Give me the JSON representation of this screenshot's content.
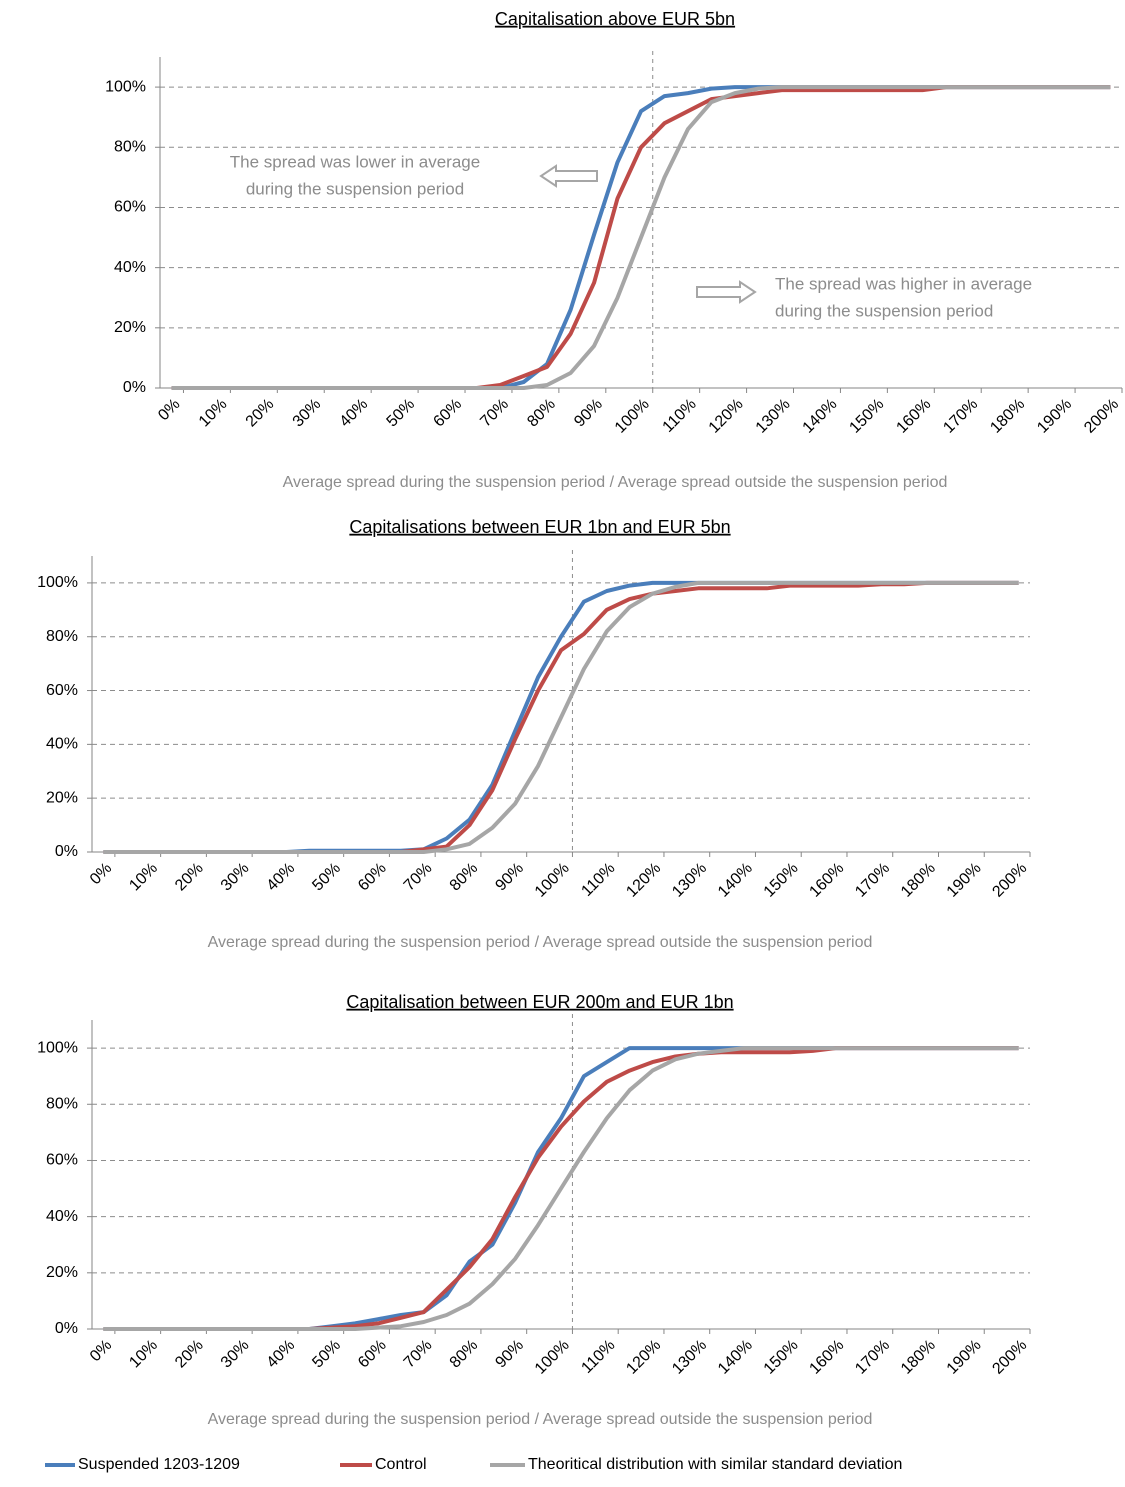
{
  "chart_data": [
    {
      "type": "line",
      "title": "Capitalisation above EUR 5bn",
      "x_label": "Average spread during the suspension period / Average  spread outside the suspension period",
      "categories": [
        "0%",
        null,
        "10%",
        null,
        "20%",
        null,
        "30%",
        null,
        "40%",
        null,
        "50%",
        null,
        "60%",
        null,
        "70%",
        null,
        "80%",
        null,
        "90%",
        null,
        "100%",
        null,
        "110%",
        null,
        "120%",
        null,
        "130%",
        null,
        "140%",
        null,
        "150%",
        null,
        "160%",
        null,
        "170%",
        null,
        "180%",
        null,
        "190%",
        null,
        "200%"
      ],
      "ylim": [
        0,
        110
      ],
      "yticks": [
        {
          "value": 0,
          "label": "0%"
        },
        {
          "value": 20,
          "label": "20%"
        },
        {
          "value": 40,
          "label": "40%"
        },
        {
          "value": 60,
          "label": "60%"
        },
        {
          "value": 80,
          "label": "80%"
        },
        {
          "value": 100,
          "label": "100%"
        }
      ],
      "grid": true,
      "annotations": [
        {
          "lines": [
            "The spread was lower in average",
            "during the suspension period"
          ]
        },
        {
          "lines": [
            "The spread was higher in average",
            "during the suspension period"
          ]
        }
      ],
      "series": [
        {
          "name": "Suspended 1203-1209",
          "color": "#4a7ebb",
          "values": [
            0,
            0,
            0,
            0,
            0,
            0,
            0,
            0,
            0,
            0,
            0,
            0,
            0,
            0,
            0,
            2,
            8,
            26,
            51,
            75,
            92,
            97,
            98,
            99.5,
            100,
            100,
            100,
            100,
            100,
            100,
            100,
            100,
            100,
            100,
            100,
            100,
            100,
            100,
            100,
            100,
            100
          ]
        },
        {
          "name": "Control",
          "color": "#be4b48",
          "values": [
            0,
            0,
            0,
            0,
            0,
            0,
            0,
            0,
            0,
            0,
            0,
            0,
            0,
            0,
            1,
            4,
            7,
            18,
            35,
            63,
            80,
            88,
            92,
            96,
            97,
            98,
            99,
            99,
            99,
            99,
            99,
            99,
            99,
            100,
            100,
            100,
            100,
            100,
            100,
            100,
            100
          ]
        },
        {
          "name": "Theoritical distribution with similar standard deviation",
          "color": "#a6a6a6",
          "values": [
            0,
            0,
            0,
            0,
            0,
            0,
            0,
            0,
            0,
            0,
            0,
            0,
            0,
            0,
            0,
            0,
            1,
            5,
            14,
            30,
            50,
            70,
            86,
            95,
            98,
            99.5,
            100,
            100,
            100,
            100,
            100,
            100,
            100,
            100,
            100,
            100,
            100,
            100,
            100,
            100,
            100
          ]
        }
      ]
    },
    {
      "type": "line",
      "title": "Capitalisations between EUR 1bn and EUR 5bn",
      "x_label": "Average spread during the suspension period / Average  spread outside the suspension period",
      "categories": [
        "0%",
        null,
        "10%",
        null,
        "20%",
        null,
        "30%",
        null,
        "40%",
        null,
        "50%",
        null,
        "60%",
        null,
        "70%",
        null,
        "80%",
        null,
        "90%",
        null,
        "100%",
        null,
        "110%",
        null,
        "120%",
        null,
        "130%",
        null,
        "140%",
        null,
        "150%",
        null,
        "160%",
        null,
        "170%",
        null,
        "180%",
        null,
        "190%",
        null,
        "200%"
      ],
      "ylim": [
        0,
        110
      ],
      "yticks": [
        {
          "value": 0,
          "label": "0%"
        },
        {
          "value": 20,
          "label": "20%"
        },
        {
          "value": 40,
          "label": "40%"
        },
        {
          "value": 60,
          "label": "60%"
        },
        {
          "value": 80,
          "label": "80%"
        },
        {
          "value": 100,
          "label": "100%"
        }
      ],
      "grid": true,
      "series": [
        {
          "color": "#4a7ebb",
          "values": [
            0,
            0,
            0,
            0,
            0,
            0,
            0,
            0,
            0,
            0.5,
            0.5,
            0.5,
            0.5,
            0.5,
            1,
            5,
            12,
            25,
            45,
            65,
            80,
            93,
            97,
            99,
            100,
            100,
            100,
            100,
            100,
            100,
            100,
            100,
            100,
            100,
            100,
            100,
            100,
            100,
            100,
            100,
            100
          ]
        },
        {
          "color": "#be4b48",
          "values": [
            0,
            0,
            0,
            0,
            0,
            0,
            0,
            0,
            0,
            0,
            0,
            0,
            0,
            0,
            1,
            2,
            10,
            23,
            42,
            60,
            75,
            81,
            90,
            94,
            96,
            97,
            98,
            98,
            98,
            98,
            99,
            99,
            99,
            99,
            99.5,
            99.5,
            100,
            100,
            100,
            100,
            100
          ]
        },
        {
          "color": "#a6a6a6",
          "values": [
            0,
            0,
            0,
            0,
            0,
            0,
            0,
            0,
            0,
            0,
            0,
            0,
            0,
            0,
            0,
            1,
            3,
            9,
            18,
            32,
            50,
            68,
            82,
            91,
            96,
            98.5,
            100,
            100,
            100,
            100,
            100,
            100,
            100,
            100,
            100,
            100,
            100,
            100,
            100,
            100,
            100
          ]
        }
      ]
    },
    {
      "type": "line",
      "title": "Capitalisation between EUR 200m  and EUR 1bn",
      "x_label": "Average spread during the suspension period / Average  spread outside the suspension period",
      "categories": [
        "0%",
        null,
        "10%",
        null,
        "20%",
        null,
        "30%",
        null,
        "40%",
        null,
        "50%",
        null,
        "60%",
        null,
        "70%",
        null,
        "80%",
        null,
        "90%",
        null,
        "100%",
        null,
        "110%",
        null,
        "120%",
        null,
        "130%",
        null,
        "140%",
        null,
        "150%",
        null,
        "160%",
        null,
        "170%",
        null,
        "180%",
        null,
        "190%",
        null,
        "200%"
      ],
      "ylim": [
        0,
        110
      ],
      "yticks": [
        {
          "value": 0,
          "label": "0%"
        },
        {
          "value": 20,
          "label": "20%"
        },
        {
          "value": 40,
          "label": "40%"
        },
        {
          "value": 60,
          "label": "60%"
        },
        {
          "value": 80,
          "label": "80%"
        },
        {
          "value": 100,
          "label": "100%"
        }
      ],
      "grid": true,
      "series": [
        {
          "color": "#4a7ebb",
          "values": [
            0,
            0,
            0,
            0,
            0,
            0,
            0,
            0,
            0,
            0,
            1,
            2,
            3.5,
            5,
            6,
            12,
            24,
            30,
            45,
            63,
            75,
            90,
            95,
            100,
            100,
            100,
            100,
            100,
            100,
            100,
            100,
            100,
            100,
            100,
            100,
            100,
            100,
            100,
            100,
            100,
            100
          ]
        },
        {
          "color": "#be4b48",
          "values": [
            0,
            0,
            0,
            0,
            0,
            0,
            0,
            0,
            0,
            0,
            0.5,
            1,
            2,
            4,
            6,
            14,
            22,
            32,
            47,
            61,
            72,
            81,
            88,
            92,
            95,
            97,
            98,
            98.5,
            98.5,
            98.5,
            98.5,
            99,
            100,
            100,
            100,
            100,
            100,
            100,
            100,
            100,
            100
          ]
        },
        {
          "color": "#a6a6a6",
          "values": [
            0,
            0,
            0,
            0,
            0,
            0,
            0,
            0,
            0,
            0,
            0,
            0,
            0.5,
            1,
            2.5,
            5,
            9,
            16,
            25,
            37,
            50,
            63,
            75,
            85,
            92,
            96,
            98,
            99,
            100,
            100,
            100,
            100,
            100,
            100,
            100,
            100,
            100,
            100,
            100,
            100,
            100
          ]
        }
      ]
    }
  ]
}
